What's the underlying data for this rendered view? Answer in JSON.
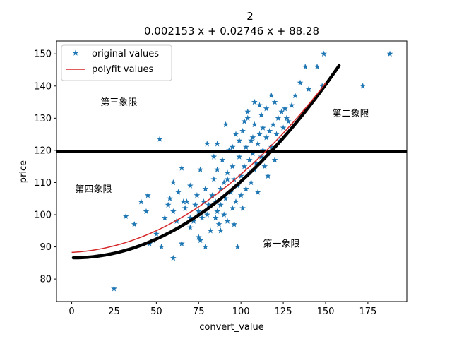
{
  "chart_data": {
    "type": "scatter",
    "title": "2",
    "subtitle": "0.002153 x + 0.02746 x + 88.28",
    "xlabel": "convert_value",
    "ylabel": "price",
    "xlim": [
      -9,
      198
    ],
    "ylim": [
      73,
      154
    ],
    "xticks": [
      0,
      25,
      50,
      75,
      100,
      125,
      150,
      175
    ],
    "yticks": [
      80,
      90,
      100,
      110,
      120,
      130,
      140,
      150
    ],
    "grid": false,
    "legend_position": "top-left",
    "colors": {
      "scatter": "#1f77b4",
      "fit": "#d62728",
      "curve": "#000000",
      "hline": "#000000"
    },
    "series": [
      {
        "name": "original values",
        "kind": "scatter",
        "marker": "star",
        "points": [
          [
            25,
            77
          ],
          [
            32,
            99.5
          ],
          [
            37,
            97
          ],
          [
            41,
            104
          ],
          [
            44,
            101
          ],
          [
            45,
            106
          ],
          [
            46,
            91
          ],
          [
            48,
            92
          ],
          [
            50,
            94
          ],
          [
            52,
            123.5
          ],
          [
            55,
            99
          ],
          [
            57,
            103
          ],
          [
            58,
            105
          ],
          [
            60,
            101
          ],
          [
            60,
            86.5
          ],
          [
            62,
            98
          ],
          [
            63,
            107
          ],
          [
            65,
            114.5
          ],
          [
            65,
            91
          ],
          [
            67,
            102
          ],
          [
            68,
            104
          ],
          [
            70,
            109
          ],
          [
            70,
            96
          ],
          [
            72,
            98
          ],
          [
            73,
            103
          ],
          [
            74,
            106
          ],
          [
            75,
            101
          ],
          [
            75,
            93
          ],
          [
            76,
            92
          ],
          [
            77,
            99
          ],
          [
            78,
            104
          ],
          [
            79,
            108
          ],
          [
            80,
            100
          ],
          [
            80,
            122
          ],
          [
            81,
            103
          ],
          [
            82,
            95
          ],
          [
            83,
            106
          ],
          [
            84,
            111
          ],
          [
            85,
            99
          ],
          [
            85,
            104
          ],
          [
            86,
            101
          ],
          [
            86,
            114
          ],
          [
            87,
            97
          ],
          [
            88,
            108
          ],
          [
            88,
            103
          ],
          [
            89,
            117
          ],
          [
            90,
            100
          ],
          [
            90,
            110
          ],
          [
            91,
            105
          ],
          [
            92,
            113
          ],
          [
            92,
            98
          ],
          [
            93,
            120
          ],
          [
            94,
            107
          ],
          [
            95,
            115
          ],
          [
            95,
            102
          ],
          [
            96,
            111
          ],
          [
            97,
            125
          ],
          [
            97,
            104
          ],
          [
            98,
            109
          ],
          [
            99,
            118
          ],
          [
            100,
            112
          ],
          [
            100,
            106
          ],
          [
            101,
            126
          ],
          [
            101,
            102
          ],
          [
            102,
            115
          ],
          [
            103,
            121
          ],
          [
            103,
            108
          ],
          [
            104,
            130
          ],
          [
            105,
            113
          ],
          [
            105,
            117
          ],
          [
            106,
            110
          ],
          [
            106,
            123
          ],
          [
            107,
            119
          ],
          [
            108,
            114
          ],
          [
            108,
            128
          ],
          [
            109,
            116
          ],
          [
            110,
            122
          ],
          [
            110,
            107
          ],
          [
            111,
            125
          ],
          [
            112,
            118
          ],
          [
            112,
            131
          ],
          [
            113,
            120
          ],
          [
            114,
            115
          ],
          [
            115,
            124
          ],
          [
            115,
            133
          ],
          [
            116,
            119
          ],
          [
            117,
            126
          ],
          [
            118,
            121
          ],
          [
            119,
            128
          ],
          [
            120,
            117
          ],
          [
            120,
            135
          ],
          [
            121,
            125
          ],
          [
            122,
            130
          ],
          [
            123,
            123
          ],
          [
            124,
            132
          ],
          [
            125,
            127
          ],
          [
            126,
            133
          ],
          [
            128,
            129
          ],
          [
            130,
            134
          ],
          [
            132,
            137
          ],
          [
            135,
            141
          ],
          [
            138,
            146
          ],
          [
            140,
            139
          ],
          [
            145,
            146
          ],
          [
            148,
            140
          ],
          [
            149,
            150
          ],
          [
            172,
            140
          ],
          [
            188,
            150
          ],
          [
            104,
            132
          ],
          [
            108,
            135
          ],
          [
            118,
            137
          ],
          [
            98,
            90
          ],
          [
            79,
            90
          ],
          [
            53,
            90
          ],
          [
            70,
            99
          ],
          [
            92,
            111
          ],
          [
            116,
            112
          ],
          [
            127,
            130
          ],
          [
            60,
            110
          ],
          [
            66,
            104
          ],
          [
            76,
            114
          ],
          [
            84,
            118
          ],
          [
            95,
            121
          ],
          [
            86,
            122
          ],
          [
            91,
            128
          ],
          [
            102,
            129
          ],
          [
            111,
            134
          ],
          [
            99,
            123
          ],
          [
            88,
            95
          ],
          [
            96,
            97
          ],
          [
            107,
            124
          ],
          [
            113,
            127
          ]
        ]
      },
      {
        "name": "polyfit values",
        "kind": "line",
        "coefficients": [
          0.002153,
          0.02746,
          88.28
        ],
        "x_range": [
          0,
          150
        ]
      },
      {
        "kind": "curve",
        "coefficients": [
          0.00242,
          -0.0043,
          86.6
        ],
        "x_range": [
          1,
          158
        ]
      },
      {
        "kind": "hline",
        "y": 119.7,
        "x_range": [
          -9,
          198
        ]
      }
    ],
    "annotations": [
      {
        "text": "第一象限",
        "x": 113,
        "y": 91
      },
      {
        "text": "第二象限",
        "x": 154,
        "y": 131.5
      },
      {
        "text": "第三象限",
        "x": 17,
        "y": 135
      },
      {
        "text": "第四象限",
        "x": 2,
        "y": 108
      }
    ]
  }
}
